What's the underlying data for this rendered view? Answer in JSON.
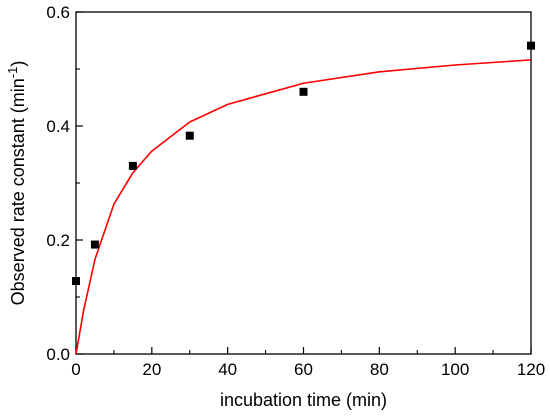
{
  "chart_data": {
    "type": "scatter",
    "title": "",
    "xlabel": "incubation time (min)",
    "ylabel": "Observed rate constant (min",
    "ylabel_superscript": "-1",
    "ylabel_suffix": ")",
    "xlim": [
      0,
      120
    ],
    "ylim": [
      0,
      0.6
    ],
    "xticks": [
      0,
      20,
      40,
      60,
      80,
      100,
      120
    ],
    "xtick_labels": [
      "0",
      "20",
      "40",
      "60",
      "80",
      "100",
      "120"
    ],
    "yticks": [
      0.0,
      0.2,
      0.4,
      0.6
    ],
    "ytick_labels": [
      "0.0",
      "0.2",
      "0.4",
      "0.6"
    ],
    "grid": false,
    "legend": "none",
    "series": [
      {
        "type": "scatter",
        "marker": "square",
        "color": "#000000",
        "x": [
          0,
          5,
          15,
          30,
          60,
          120
        ],
        "y": [
          0.128,
          0.192,
          0.33,
          0.383,
          0.46,
          0.541
        ]
      },
      {
        "type": "line",
        "fit": "hyperbolic",
        "color": "#ff0000",
        "x": [
          0,
          2,
          5,
          10,
          15,
          20,
          30,
          40,
          60,
          80,
          100,
          120
        ],
        "y": [
          0,
          0.076,
          0.166,
          0.263,
          0.318,
          0.356,
          0.407,
          0.438,
          0.475,
          0.495,
          0.507,
          0.516
        ]
      }
    ]
  }
}
